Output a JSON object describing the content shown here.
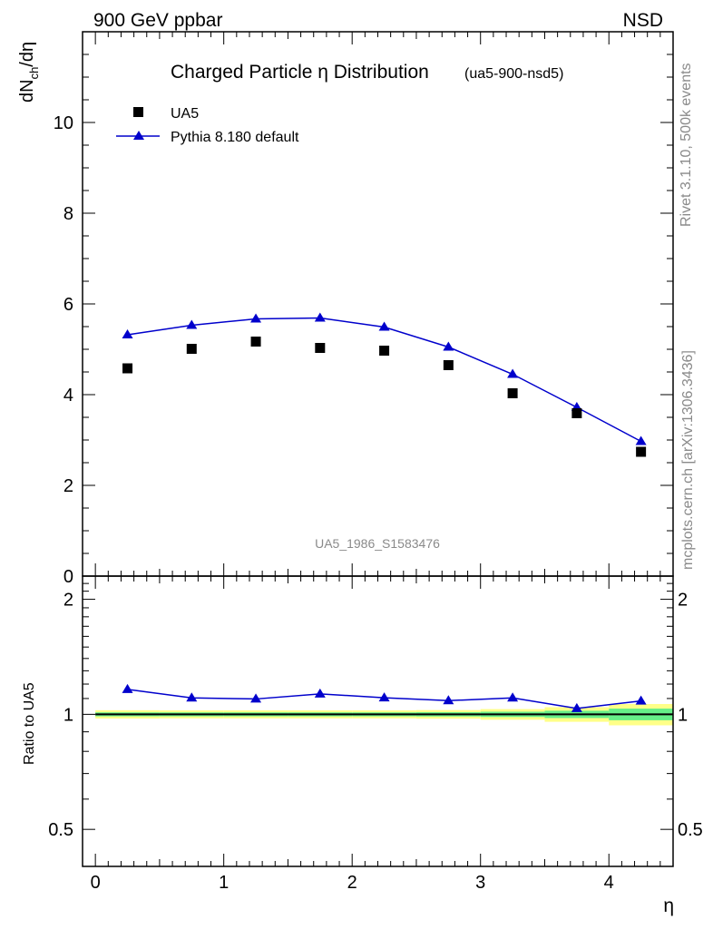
{
  "header": {
    "left": "900 GeV ppbar",
    "right": "NSD"
  },
  "side_text": {
    "rivet": "Rivet 3.1.10,  500k events",
    "source": "mcplots.cern.ch [arXiv:1306.3436]"
  },
  "chart_data": {
    "type": "scatter",
    "title": "Charged Particle η Distribution",
    "subtitle": "(ua5-900-nsd5)",
    "watermark": "UA5_1986_S1583476",
    "xlabel": "η",
    "ylabel": "dN",
    "ylabel_sub": "ch",
    "ylabel_tail": "/dη",
    "ratio_ylabel": "Ratio to UA5",
    "xlim": [
      -0.1,
      4.5
    ],
    "ylim": [
      0,
      12
    ],
    "ratio_ylim": [
      0.4,
      2.3
    ],
    "x_ticks": [
      "0",
      "1",
      "2",
      "3",
      "4"
    ],
    "y_ticks": [
      "0",
      "2",
      "4",
      "6",
      "8",
      "10"
    ],
    "ratio_ticks": [
      "0.5",
      "1",
      "2"
    ],
    "legend": {
      "position": "top-left",
      "data_label": "UA5",
      "mc_label": "Pythia 8.180 default"
    },
    "x": [
      0.25,
      0.75,
      1.25,
      1.75,
      2.25,
      2.75,
      3.25,
      3.75,
      4.25
    ],
    "series": [
      {
        "name": "UA5",
        "style": "black-square-markers",
        "values": [
          4.58,
          5.01,
          5.17,
          5.03,
          4.97,
          4.65,
          4.03,
          3.59,
          2.74
        ]
      },
      {
        "name": "Pythia 8.180 default",
        "style": "blue-line-triangle",
        "values": [
          5.32,
          5.53,
          5.67,
          5.69,
          5.49,
          5.05,
          4.45,
          3.72,
          2.97
        ]
      }
    ],
    "ratio": [
      1.162,
      1.104,
      1.097,
      1.131,
      1.105,
      1.086,
      1.104,
      1.036,
      1.084
    ],
    "error_bands": [
      {
        "x0": 0.0,
        "x1": 0.5,
        "inner": 0.012,
        "outer": 0.025
      },
      {
        "x0": 0.5,
        "x1": 1.0,
        "inner": 0.012,
        "outer": 0.024
      },
      {
        "x0": 1.0,
        "x1": 1.5,
        "inner": 0.012,
        "outer": 0.024
      },
      {
        "x0": 1.5,
        "x1": 2.0,
        "inner": 0.012,
        "outer": 0.024
      },
      {
        "x0": 2.0,
        "x1": 2.5,
        "inner": 0.012,
        "outer": 0.024
      },
      {
        "x0": 2.5,
        "x1": 3.0,
        "inner": 0.013,
        "outer": 0.026
      },
      {
        "x0": 3.0,
        "x1": 3.5,
        "inner": 0.016,
        "outer": 0.032
      },
      {
        "x0": 3.5,
        "x1": 4.0,
        "inner": 0.022,
        "outer": 0.044
      },
      {
        "x0": 4.0,
        "x1": 4.5,
        "inner": 0.035,
        "outer": 0.064
      }
    ],
    "colors": {
      "mc": "#0000cc",
      "data": "#000000",
      "band_inner": "#66ee88",
      "band_outer": "#ffff88"
    }
  }
}
